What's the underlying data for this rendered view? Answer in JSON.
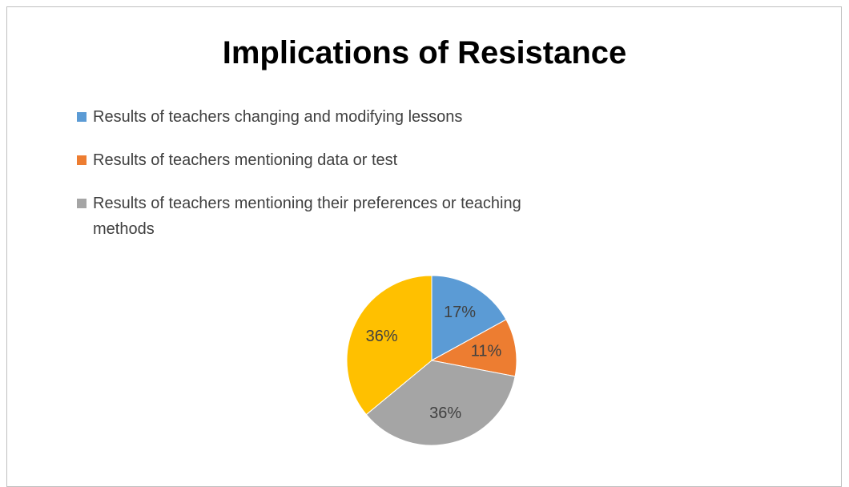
{
  "chart_data": {
    "type": "pie",
    "title": "Implications of Resistance",
    "categories": [
      "Results of teachers changing and modifying lessons",
      "Results of teachers mentioning data or test",
      "Results of teachers mentioning their preferences or teaching methods",
      null
    ],
    "values": [
      17,
      11,
      36,
      36
    ],
    "value_labels": [
      "17%",
      "11%",
      "36%",
      "36%"
    ],
    "colors": [
      "#5b9bd5",
      "#ed7d31",
      "#a5a5a5",
      "#ffc000"
    ],
    "legend": "top-left"
  }
}
